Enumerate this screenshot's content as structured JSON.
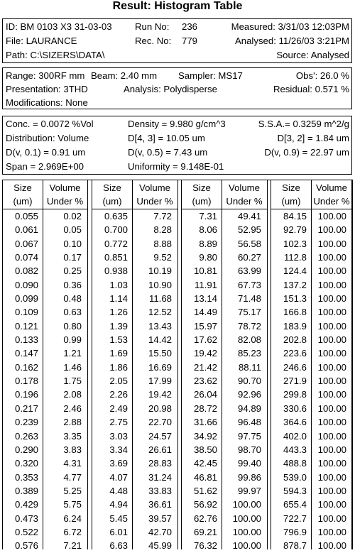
{
  "title": "Result: Histogram Table",
  "info": {
    "id_label": "ID: BM 0103 X3 31-03-03",
    "run_label": "Run No:",
    "run_value": "236",
    "measured": "Measured: 3/31/03 12:03PM",
    "file_label": "File: LAURANCE",
    "rec_label": "Rec. No:",
    "rec_value": "779",
    "analysed": "Analysed: 11/26/03 3:21PM",
    "path_label": "Path: C:\\SIZERS\\DATA\\",
    "source": "Source: Analysed"
  },
  "setup": {
    "range": "Range: 300RF mm",
    "beam": "Beam:  2.40 mm",
    "sampler": "Sampler: MS17",
    "obs": "Obs': 26.0 %",
    "presentation": "Presentation: 3THD",
    "analysis": "Analysis:  Polydisperse",
    "residual": "Residual:  0.571 %",
    "modifications": "Modifications: None"
  },
  "results": {
    "conc": "Conc. =  0.0072 %Vol",
    "density": "Density =  9.980 g/cm^3",
    "ssa": "S.S.A.=  0.3259 m^2/g",
    "distribution": "Distribution:  Volume",
    "d43": "D[4, 3] =   10.05 um",
    "d32": "D[3, 2] =    1.84 um",
    "dv01": "D(v, 0.1) =    0.91 um",
    "dv05": "D(v, 0.5) =    7.43 um",
    "dv09": "D(v, 0.9) =  22.97 um",
    "span": "Span = 2.969E+00",
    "uniformity": "Uniformity = 9.148E-01"
  },
  "table": {
    "headers": {
      "size_line1": "Size",
      "size_line2": "(um)",
      "vol_line1": "Volume",
      "vol_line2": "Under %"
    },
    "groups": [
      [
        [
          "0.055",
          "0.02"
        ],
        [
          "0.061",
          "0.05"
        ],
        [
          "0.067",
          "0.10"
        ],
        [
          "0.074",
          "0.17"
        ],
        [
          "0.082",
          "0.25"
        ],
        [
          "0.090",
          "0.36"
        ],
        [
          "0.099",
          "0.48"
        ],
        [
          "0.109",
          "0.63"
        ],
        [
          "0.121",
          "0.80"
        ],
        [
          "0.133",
          "0.99"
        ],
        [
          "0.147",
          "1.21"
        ],
        [
          "0.162",
          "1.46"
        ],
        [
          "0.178",
          "1.75"
        ],
        [
          "0.196",
          "2.08"
        ],
        [
          "0.217",
          "2.46"
        ],
        [
          "0.239",
          "2.88"
        ],
        [
          "0.263",
          "3.35"
        ],
        [
          "0.290",
          "3.83"
        ],
        [
          "0.320",
          "4.31"
        ],
        [
          "0.353",
          "4.77"
        ],
        [
          "0.389",
          "5.25"
        ],
        [
          "0.429",
          "5.75"
        ],
        [
          "0.473",
          "6.24"
        ],
        [
          "0.522",
          "6.72"
        ],
        [
          "0.576",
          "7.21"
        ]
      ],
      [
        [
          "0.635",
          "7.72"
        ],
        [
          "0.700",
          "8.28"
        ],
        [
          "0.772",
          "8.88"
        ],
        [
          "0.851",
          "9.52"
        ],
        [
          "0.938",
          "10.19"
        ],
        [
          "1.03",
          "10.90"
        ],
        [
          "1.14",
          "11.68"
        ],
        [
          "1.26",
          "12.52"
        ],
        [
          "1.39",
          "13.43"
        ],
        [
          "1.53",
          "14.42"
        ],
        [
          "1.69",
          "15.50"
        ],
        [
          "1.86",
          "16.69"
        ],
        [
          "2.05",
          "17.99"
        ],
        [
          "2.26",
          "19.42"
        ],
        [
          "2.49",
          "20.98"
        ],
        [
          "2.75",
          "22.70"
        ],
        [
          "3.03",
          "24.57"
        ],
        [
          "3.34",
          "26.61"
        ],
        [
          "3.69",
          "28.83"
        ],
        [
          "4.07",
          "31.24"
        ],
        [
          "4.48",
          "33.83"
        ],
        [
          "4.94",
          "36.61"
        ],
        [
          "5.45",
          "39.57"
        ],
        [
          "6.01",
          "42.70"
        ],
        [
          "6.63",
          "45.99"
        ]
      ],
      [
        [
          "7.31",
          "49.41"
        ],
        [
          "8.06",
          "52.95"
        ],
        [
          "8.89",
          "56.58"
        ],
        [
          "9.80",
          "60.27"
        ],
        [
          "10.81",
          "63.99"
        ],
        [
          "11.91",
          "67.73"
        ],
        [
          "13.14",
          "71.48"
        ],
        [
          "14.49",
          "75.17"
        ],
        [
          "15.97",
          "78.72"
        ],
        [
          "17.62",
          "82.08"
        ],
        [
          "19.42",
          "85.23"
        ],
        [
          "21.42",
          "88.11"
        ],
        [
          "23.62",
          "90.70"
        ],
        [
          "26.04",
          "92.96"
        ],
        [
          "28.72",
          "94.89"
        ],
        [
          "31.66",
          "96.48"
        ],
        [
          "34.92",
          "97.75"
        ],
        [
          "38.50",
          "98.70"
        ],
        [
          "42.45",
          "99.40"
        ],
        [
          "46.81",
          "99.86"
        ],
        [
          "51.62",
          "99.97"
        ],
        [
          "56.92",
          "100.00"
        ],
        [
          "62.76",
          "100.00"
        ],
        [
          "69.21",
          "100.00"
        ],
        [
          "76.32",
          "100.00"
        ]
      ],
      [
        [
          "84.15",
          "100.00"
        ],
        [
          "92.79",
          "100.00"
        ],
        [
          "102.3",
          "100.00"
        ],
        [
          "112.8",
          "100.00"
        ],
        [
          "124.4",
          "100.00"
        ],
        [
          "137.2",
          "100.00"
        ],
        [
          "151.3",
          "100.00"
        ],
        [
          "166.8",
          "100.00"
        ],
        [
          "183.9",
          "100.00"
        ],
        [
          "202.8",
          "100.00"
        ],
        [
          "223.6",
          "100.00"
        ],
        [
          "246.6",
          "100.00"
        ],
        [
          "271.9",
          "100.00"
        ],
        [
          "299.8",
          "100.00"
        ],
        [
          "330.6",
          "100.00"
        ],
        [
          "364.6",
          "100.00"
        ],
        [
          "402.0",
          "100.00"
        ],
        [
          "443.3",
          "100.00"
        ],
        [
          "488.8",
          "100.00"
        ],
        [
          "539.0",
          "100.00"
        ],
        [
          "594.3",
          "100.00"
        ],
        [
          "655.4",
          "100.00"
        ],
        [
          "722.7",
          "100.00"
        ],
        [
          "796.9",
          "100.00"
        ],
        [
          "878.7",
          "100.00"
        ]
      ]
    ]
  }
}
